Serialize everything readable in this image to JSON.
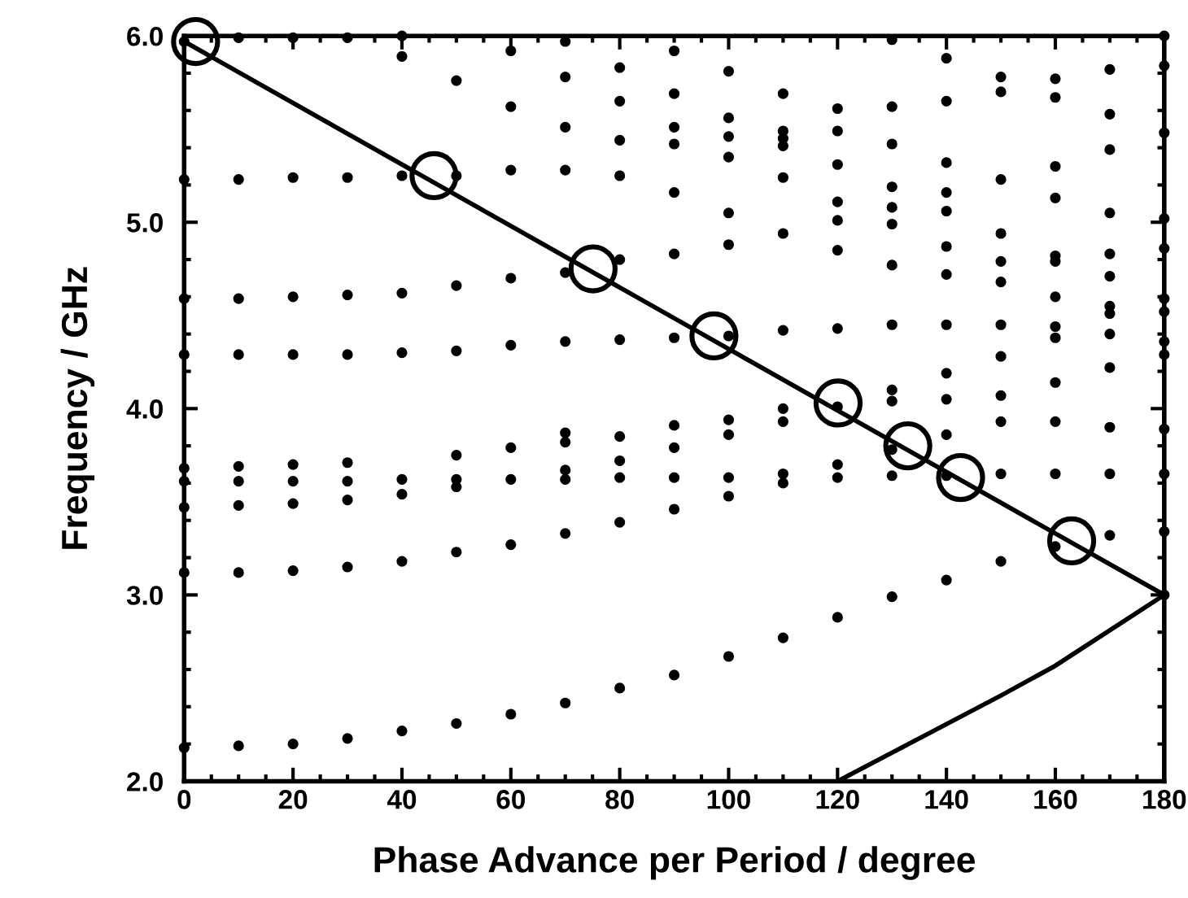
{
  "chart_data": {
    "type": "scatter",
    "xlabel": "Phase Advance per Period / degree",
    "ylabel": "Frequency / GHz",
    "xlim": [
      0,
      180
    ],
    "xticks": [
      0,
      20,
      40,
      60,
      80,
      100,
      120,
      140,
      160,
      180
    ],
    "ylim": [
      2.0,
      6.0
    ],
    "yticks": [
      {
        "value": 2,
        "label": "2.0"
      },
      {
        "value": 3,
        "label": "3.0"
      },
      {
        "value": 4,
        "label": "4.0"
      },
      {
        "value": 5,
        "label": "5.0"
      },
      {
        "value": 6,
        "label": "6.0"
      }
    ],
    "grid": false,
    "legend": false,
    "series": [
      {
        "marker": "circle",
        "color": "#000000",
        "x": [
          0,
          0,
          0,
          0,
          0,
          0,
          0,
          0,
          0,
          10,
          10,
          10,
          10,
          10,
          10,
          10,
          10,
          10,
          20,
          20,
          20,
          20,
          20,
          20,
          20,
          20,
          20,
          30,
          30,
          30,
          30,
          30,
          30,
          30,
          30,
          30,
          40,
          40,
          40,
          40,
          40,
          40,
          40,
          40,
          40,
          50,
          50,
          50,
          50,
          50,
          50,
          50,
          50,
          50,
          60,
          60,
          60,
          60,
          60,
          60,
          60,
          60,
          60,
          70,
          70,
          70,
          70,
          70,
          70,
          70,
          70,
          70,
          70,
          70,
          70,
          80,
          80,
          80,
          80,
          80,
          80,
          80,
          80,
          80,
          80,
          80,
          90,
          90,
          90,
          90,
          90,
          90,
          90,
          90,
          90,
          90,
          90,
          90,
          100,
          100,
          100,
          100,
          100,
          100,
          100,
          100,
          100,
          100,
          100,
          100,
          110,
          110,
          110,
          110,
          110,
          110,
          110,
          110,
          110,
          110,
          110,
          110,
          120,
          120,
          120,
          120,
          120,
          120,
          120,
          120,
          120,
          120,
          120,
          130,
          130,
          130,
          130,
          130,
          130,
          130,
          130,
          130,
          130,
          130,
          130,
          130,
          140,
          140,
          140,
          140,
          140,
          140,
          140,
          140,
          140,
          140,
          140,
          140,
          140,
          150,
          150,
          150,
          150,
          150,
          150,
          150,
          150,
          150,
          150,
          150,
          150,
          160,
          160,
          160,
          160,
          160,
          160,
          160,
          160,
          160,
          160,
          160,
          160,
          160,
          170,
          170,
          170,
          170,
          170,
          170,
          170,
          170,
          170,
          170,
          170,
          170,
          170,
          180,
          180,
          180,
          180,
          180,
          180,
          180,
          180,
          180,
          180,
          180,
          180,
          180
        ],
        "values": [
          5.97,
          5.23,
          4.59,
          4.29,
          3.68,
          3.61,
          3.47,
          3.12,
          2.18,
          5.99,
          5.23,
          4.59,
          4.29,
          3.69,
          3.61,
          3.48,
          3.12,
          2.19,
          5.99,
          5.24,
          4.6,
          4.29,
          3.7,
          3.61,
          3.49,
          3.13,
          2.2,
          5.99,
          5.24,
          4.61,
          4.29,
          3.71,
          3.61,
          3.51,
          3.15,
          2.23,
          6.0,
          5.89,
          5.25,
          4.62,
          4.3,
          3.62,
          3.54,
          3.18,
          2.27,
          5.76,
          5.25,
          4.66,
          4.31,
          3.75,
          3.62,
          3.58,
          3.23,
          2.31,
          5.92,
          5.62,
          5.28,
          4.7,
          4.34,
          3.79,
          3.62,
          3.27,
          2.36,
          5.97,
          5.78,
          5.51,
          5.28,
          4.73,
          4.36,
          3.87,
          3.82,
          3.67,
          3.62,
          3.33,
          2.42,
          5.83,
          5.65,
          5.44,
          5.25,
          4.8,
          4.37,
          3.85,
          3.72,
          3.63,
          3.39,
          2.5,
          5.92,
          5.69,
          5.51,
          5.42,
          5.16,
          4.83,
          4.38,
          3.91,
          3.79,
          3.63,
          3.46,
          2.57,
          5.81,
          5.56,
          5.46,
          5.35,
          5.05,
          4.88,
          4.39,
          3.94,
          3.86,
          3.63,
          3.53,
          2.67,
          5.69,
          5.49,
          5.45,
          5.41,
          5.24,
          4.94,
          4.42,
          4.0,
          3.93,
          3.65,
          3.6,
          2.77,
          5.61,
          5.49,
          5.31,
          5.11,
          5.01,
          4.85,
          4.43,
          4.01,
          3.7,
          3.63,
          2.88,
          5.98,
          5.62,
          5.42,
          5.19,
          5.08,
          4.99,
          4.77,
          4.45,
          4.1,
          4.04,
          3.78,
          3.64,
          2.99,
          5.88,
          5.65,
          5.32,
          5.16,
          5.06,
          4.87,
          4.72,
          4.45,
          4.19,
          4.05,
          3.86,
          3.64,
          3.08,
          5.78,
          5.7,
          5.23,
          4.94,
          4.79,
          4.68,
          4.45,
          4.28,
          4.07,
          3.93,
          3.65,
          3.18,
          5.77,
          5.67,
          5.3,
          5.13,
          4.82,
          4.79,
          4.6,
          4.44,
          4.38,
          4.14,
          3.93,
          3.65,
          3.26,
          5.82,
          5.58,
          5.39,
          5.05,
          4.83,
          4.71,
          4.55,
          4.51,
          4.4,
          4.22,
          3.9,
          3.65,
          3.32,
          6.0,
          5.84,
          5.48,
          5.02,
          4.86,
          4.59,
          4.52,
          4.36,
          4.29,
          3.89,
          3.65,
          3.34,
          3.0
        ]
      },
      {
        "marker": "circle",
        "color": "#000000",
        "x": [
          2.1,
          45.9,
          75.1,
          97.3,
          120.1,
          132.9,
          142.6,
          163
        ],
        "values": [
          5.97,
          5.25,
          4.75,
          4.39,
          4.03,
          3.8,
          3.63,
          3.29
        ]
      },
      {
        "type": "line",
        "marker": "none",
        "color": "#000000",
        "x": [
          0,
          180
        ],
        "values": [
          5.97,
          3.0
        ]
      },
      {
        "type": "line",
        "marker": "none",
        "color": "#000000",
        "x": [
          120,
          150,
          160,
          180
        ],
        "values": [
          2.0,
          2.46,
          2.62,
          3.0
        ]
      }
    ]
  }
}
